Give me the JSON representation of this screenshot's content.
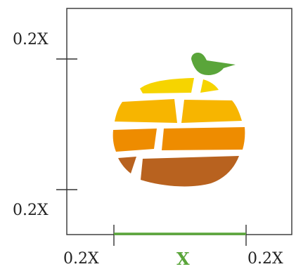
{
  "labels": {
    "top_left": "0.2X",
    "bottom_left": "0.2X",
    "bottom_first": "0.2X",
    "bottom_center": "X",
    "bottom_right": "0.2X"
  },
  "colors": {
    "frame": "#333333",
    "guide": "#5aa53a",
    "bird": "#5aa53a",
    "band_1": "#f6d400",
    "band_2": "#f7b500",
    "band_3": "#ee8c00",
    "band_4": "#b8621f"
  },
  "icons": [
    "bird-icon",
    "orange-brick-logo"
  ]
}
